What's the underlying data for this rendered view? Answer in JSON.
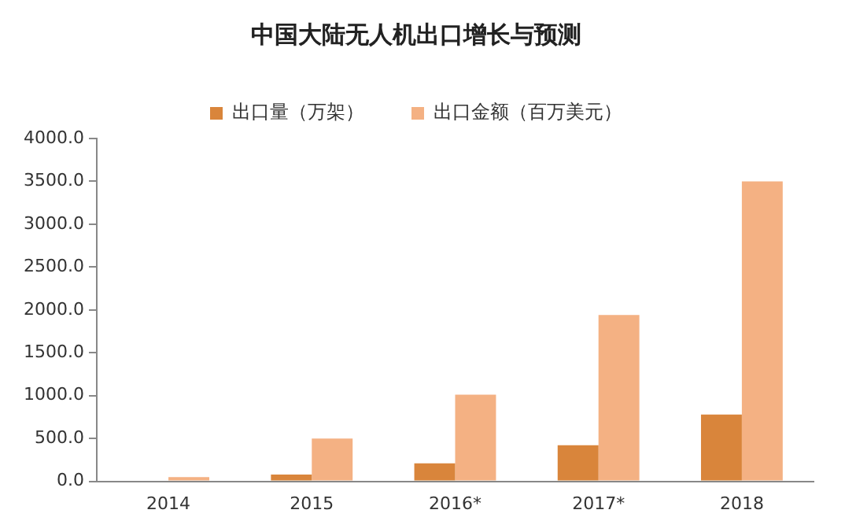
{
  "chart_data": {
    "type": "bar",
    "title": "中国大陆无人机出口增长与预测",
    "categories": [
      "2014",
      "2015",
      "2016*",
      "2017*",
      "2018"
    ],
    "series": [
      {
        "name": "出口量（万架）",
        "color": "#d9853b",
        "values": [
          0,
          80,
          210,
          420,
          780
        ]
      },
      {
        "name": "出口金额（百万美元）",
        "color": "#f4b183",
        "values": [
          50,
          500,
          1010,
          1940,
          3500
        ]
      }
    ],
    "ylim": [
      0,
      4000
    ],
    "yticks": [
      {
        "value": 0,
        "label": "0.0"
      },
      {
        "value": 500,
        "label": "500.0"
      },
      {
        "value": 1000,
        "label": "1000.0"
      },
      {
        "value": 1500,
        "label": "1500.0"
      },
      {
        "value": 2000,
        "label": "2000.0"
      },
      {
        "value": 2500,
        "label": "2500.0"
      },
      {
        "value": 3000,
        "label": "3000.0"
      },
      {
        "value": 3500,
        "label": "3500.0"
      },
      {
        "value": 4000,
        "label": "4000.0"
      }
    ],
    "grid": false,
    "legend": "top"
  }
}
